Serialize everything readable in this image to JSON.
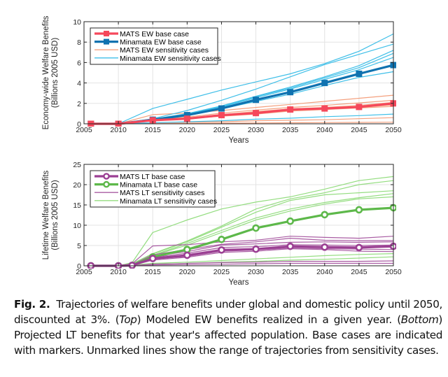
{
  "caption": {
    "label": "Fig. 2.",
    "parts": [
      {
        "text": "Trajectories of welfare benefits under global and domestic policy until 2050, discounted at 3%. (",
        "italic": false
      },
      {
        "text": "Top",
        "italic": true
      },
      {
        "text": ") Modeled EW benefits realized in a given year. (",
        "italic": false
      },
      {
        "text": "Bottom",
        "italic": true
      },
      {
        "text": ") Projected LT benefits for that year's affected population. Base cases are indicated with markers. Unmarked lines show the range of trajectories from sensitivity cases.",
        "italic": false
      }
    ]
  },
  "chart_data": [
    {
      "type": "line",
      "title": "",
      "xlabel": "Years",
      "ylabel": "Economy-wide Welfare Benefits\n(Billions 2005 USD)",
      "xlim": [
        2005,
        2050
      ],
      "ylim": [
        0,
        10
      ],
      "xticks": [
        2005,
        2010,
        2015,
        2020,
        2025,
        2030,
        2035,
        2040,
        2045,
        2050
      ],
      "yticks": [
        0,
        2,
        4,
        6,
        8,
        10
      ],
      "grid": true,
      "legend_position": "top-left",
      "legend": [
        {
          "label": "MATS EW base case",
          "color": "#f5485b",
          "marker": "square",
          "style": "thick"
        },
        {
          "label": "Minamata EW base case",
          "color": "#0f72b0",
          "marker": "square",
          "style": "thick"
        },
        {
          "label": "MATS EW sensitivity cases",
          "color": "#f4a07e",
          "marker": "none",
          "style": "thin"
        },
        {
          "label": "Minamata EW sensitivity cases",
          "color": "#3fbfe8",
          "marker": "none",
          "style": "thin"
        }
      ],
      "x": [
        2006,
        2010,
        2015,
        2020,
        2025,
        2030,
        2035,
        2040,
        2045,
        2050
      ],
      "sensitivity_series": [
        {
          "group": "MATS EW sensitivity cases",
          "color": "#f4a07e",
          "values": [
            0,
            0,
            0.9,
            1.05,
            1.3,
            1.6,
            1.9,
            2.2,
            2.5,
            2.8
          ]
        },
        {
          "group": "MATS EW sensitivity cases",
          "color": "#f4a07e",
          "values": [
            0,
            0,
            0.4,
            0.65,
            1.05,
            1.35,
            1.6,
            1.8,
            2.05,
            2.3
          ]
        },
        {
          "group": "MATS EW sensitivity cases",
          "color": "#f4a07e",
          "values": [
            0,
            0,
            0.35,
            0.55,
            0.9,
            1.2,
            1.45,
            1.6,
            1.8,
            2.1
          ]
        },
        {
          "group": "MATS EW sensitivity cases",
          "color": "#f4a07e",
          "values": [
            0,
            0,
            0.3,
            0.45,
            0.8,
            1.0,
            1.3,
            1.45,
            1.6,
            1.85
          ]
        },
        {
          "group": "MATS EW sensitivity cases",
          "color": "#f4a07e",
          "values": [
            0,
            0,
            0.3,
            0.5,
            0.75,
            0.95,
            1.25,
            1.4,
            1.55,
            1.7
          ]
        },
        {
          "group": "MATS EW sensitivity cases",
          "color": "#f4a07e",
          "values": [
            0,
            0,
            0.1,
            0.15,
            0.2,
            0.3,
            0.35,
            0.4,
            0.5,
            0.6
          ]
        },
        {
          "group": "MATS EW sensitivity cases",
          "color": "#f4a07e",
          "values": [
            0,
            0,
            0.02,
            0.04,
            0.06,
            0.08,
            0.1,
            0.12,
            0.14,
            0.16
          ]
        },
        {
          "group": "Minamata EW sensitivity cases",
          "color": "#3fbfe8",
          "values": [
            0,
            0,
            1.5,
            2.4,
            3.3,
            4.1,
            4.9,
            5.9,
            7.1,
            8.8
          ]
        },
        {
          "group": "Minamata EW sensitivity cases",
          "color": "#3fbfe8",
          "values": [
            0,
            0,
            0.5,
            1.3,
            2.3,
            3.4,
            4.6,
            5.8,
            6.8,
            7.8
          ]
        },
        {
          "group": "Minamata EW sensitivity cases",
          "color": "#3fbfe8",
          "values": [
            0,
            0,
            0.45,
            1.0,
            1.75,
            2.7,
            3.6,
            4.6,
            5.7,
            7.2
          ]
        },
        {
          "group": "Minamata EW sensitivity cases",
          "color": "#3fbfe8",
          "values": [
            0,
            0,
            0.45,
            0.95,
            1.7,
            2.65,
            3.5,
            4.5,
            5.5,
            6.9
          ]
        },
        {
          "group": "Minamata EW sensitivity cases",
          "color": "#3fbfe8",
          "values": [
            0,
            0,
            0.42,
            0.9,
            1.65,
            2.55,
            3.4,
            4.35,
            5.3,
            6.5
          ]
        },
        {
          "group": "Minamata EW sensitivity cases",
          "color": "#3fbfe8",
          "values": [
            0,
            0,
            0.38,
            0.8,
            1.45,
            2.2,
            2.9,
            3.75,
            4.55,
            5.1
          ]
        },
        {
          "group": "Minamata EW sensitivity cases",
          "color": "#3fbfe8",
          "values": [
            0,
            0,
            0.1,
            0.2,
            0.3,
            0.45,
            0.55,
            0.7,
            0.8,
            0.95
          ]
        }
      ],
      "series": [
        {
          "name": "MATS EW base case",
          "color": "#f5485b",
          "marker": "square",
          "values": [
            0,
            0,
            0.35,
            0.5,
            0.85,
            1.05,
            1.4,
            1.5,
            1.65,
            2.0
          ]
        },
        {
          "name": "Minamata EW base case",
          "color": "#0f72b0",
          "marker": "square",
          "values": [
            0,
            0,
            0.4,
            0.85,
            1.5,
            2.35,
            3.1,
            4.0,
            4.9,
            5.75
          ]
        }
      ]
    },
    {
      "type": "line",
      "title": "",
      "xlabel": "Years",
      "ylabel": "Lifetime Welfare Benefits\n(Billions 2005 USD)",
      "xlim": [
        2005,
        2050
      ],
      "ylim": [
        0,
        25
      ],
      "xticks": [
        2005,
        2010,
        2015,
        2020,
        2025,
        2030,
        2035,
        2040,
        2045,
        2050
      ],
      "yticks": [
        0,
        5,
        10,
        15,
        20,
        25
      ],
      "grid": true,
      "legend_position": "top-left",
      "legend": [
        {
          "label": "MATS LT base case",
          "color": "#9b3f93",
          "marker": "circle",
          "style": "thick"
        },
        {
          "label": "Minamata LT base case",
          "color": "#5db84a",
          "marker": "circle",
          "style": "thick"
        },
        {
          "label": "MATS LT sensitivity cases",
          "color": "#a95ca3",
          "marker": "none",
          "style": "thin"
        },
        {
          "label": "Minamata LT sensitivity cases",
          "color": "#94dd80",
          "marker": "none",
          "style": "thin"
        }
      ],
      "x": [
        2006,
        2010,
        2012,
        2015,
        2020,
        2025,
        2030,
        2035,
        2040,
        2045,
        2050
      ],
      "sensitivity_series": [
        {
          "group": "Minamata LT sensitivity cases",
          "color": "#94dd80",
          "values": [
            0,
            0,
            0.8,
            8.2,
            11.3,
            14.0,
            15.7,
            17.0,
            18.9,
            21.0,
            22.0
          ]
        },
        {
          "group": "Minamata LT sensitivity cases",
          "color": "#94dd80",
          "values": [
            0,
            0,
            0.5,
            3.0,
            6.1,
            9.8,
            14.0,
            16.5,
            18.0,
            20.0,
            21.0
          ]
        },
        {
          "group": "Minamata LT sensitivity cases",
          "color": "#94dd80",
          "values": [
            0,
            0,
            0.5,
            2.9,
            5.9,
            9.5,
            13.2,
            16.1,
            17.5,
            18.0,
            18.5
          ]
        },
        {
          "group": "Minamata LT sensitivity cases",
          "color": "#94dd80",
          "values": [
            0,
            0,
            0.4,
            2.6,
            5.5,
            8.7,
            11.8,
            14.0,
            15.6,
            16.8,
            17.8
          ]
        },
        {
          "group": "Minamata LT sensitivity cases",
          "color": "#94dd80",
          "values": [
            0,
            0,
            0.4,
            2.5,
            5.1,
            8.2,
            11.3,
            13.5,
            15.2,
            16.5,
            17.0
          ]
        },
        {
          "group": "Minamata LT sensitivity cases",
          "color": "#94dd80",
          "values": [
            0,
            0,
            0.2,
            0.6,
            0.9,
            1.3,
            1.7,
            2.1,
            2.5,
            2.8,
            3.0
          ]
        },
        {
          "group": "Minamata LT sensitivity cases",
          "color": "#94dd80",
          "values": [
            0,
            0,
            0.1,
            0.4,
            0.6,
            0.9,
            1.1,
            1.4,
            1.6,
            1.9,
            2.2
          ]
        },
        {
          "group": "MATS LT sensitivity cases",
          "color": "#a95ca3",
          "values": [
            0,
            0,
            0.5,
            4.9,
            5.2,
            5.9,
            6.3,
            7.3,
            7.0,
            6.8,
            7.3
          ]
        },
        {
          "group": "MATS LT sensitivity cases",
          "color": "#a95ca3",
          "values": [
            0,
            0,
            0.3,
            2.7,
            4.0,
            5.3,
            5.9,
            6.8,
            6.3,
            6.2,
            6.2
          ]
        },
        {
          "group": "MATS LT sensitivity cases",
          "color": "#a95ca3",
          "values": [
            0,
            0,
            0.3,
            2.4,
            3.5,
            5.1,
            5.4,
            5.8,
            5.9,
            5.8,
            5.9
          ]
        },
        {
          "group": "MATS LT sensitivity cases",
          "color": "#a95ca3",
          "values": [
            0,
            0,
            0.2,
            2.1,
            3.1,
            4.5,
            4.7,
            5.2,
            5.1,
            5.0,
            5.1
          ]
        },
        {
          "group": "MATS LT sensitivity cases",
          "color": "#a95ca3",
          "values": [
            0,
            0,
            0.2,
            1.6,
            2.3,
            3.6,
            3.9,
            4.4,
            4.2,
            4.1,
            4.0
          ]
        },
        {
          "group": "MATS LT sensitivity cases",
          "color": "#a95ca3",
          "values": [
            0,
            0,
            0.1,
            1.4,
            2.1,
            3.3,
            3.6,
            4.2,
            4.0,
            3.6,
            3.5
          ]
        },
        {
          "group": "MATS LT sensitivity cases",
          "color": "#a95ca3",
          "values": [
            0,
            0,
            0.05,
            0.4,
            0.6,
            0.8,
            0.9,
            1.1,
            1.1,
            1.1,
            1.2
          ]
        },
        {
          "group": "MATS LT sensitivity cases",
          "color": "#a95ca3",
          "values": [
            0,
            0,
            0.03,
            0.2,
            0.3,
            0.4,
            0.5,
            0.6,
            0.6,
            0.6,
            0.6
          ]
        }
      ],
      "series": [
        {
          "name": "MATS LT base case",
          "color": "#9b3f93",
          "marker": "circle",
          "values": [
            0,
            0,
            0.1,
            1.8,
            2.6,
            3.9,
            4.1,
            4.8,
            4.6,
            4.5,
            4.8
          ]
        },
        {
          "name": "Minamata LT base case",
          "color": "#5db84a",
          "marker": "circle",
          "values": [
            0,
            0,
            0.1,
            2.2,
            4.0,
            6.5,
            9.3,
            11.0,
            12.6,
            13.8,
            14.3
          ]
        }
      ]
    }
  ]
}
